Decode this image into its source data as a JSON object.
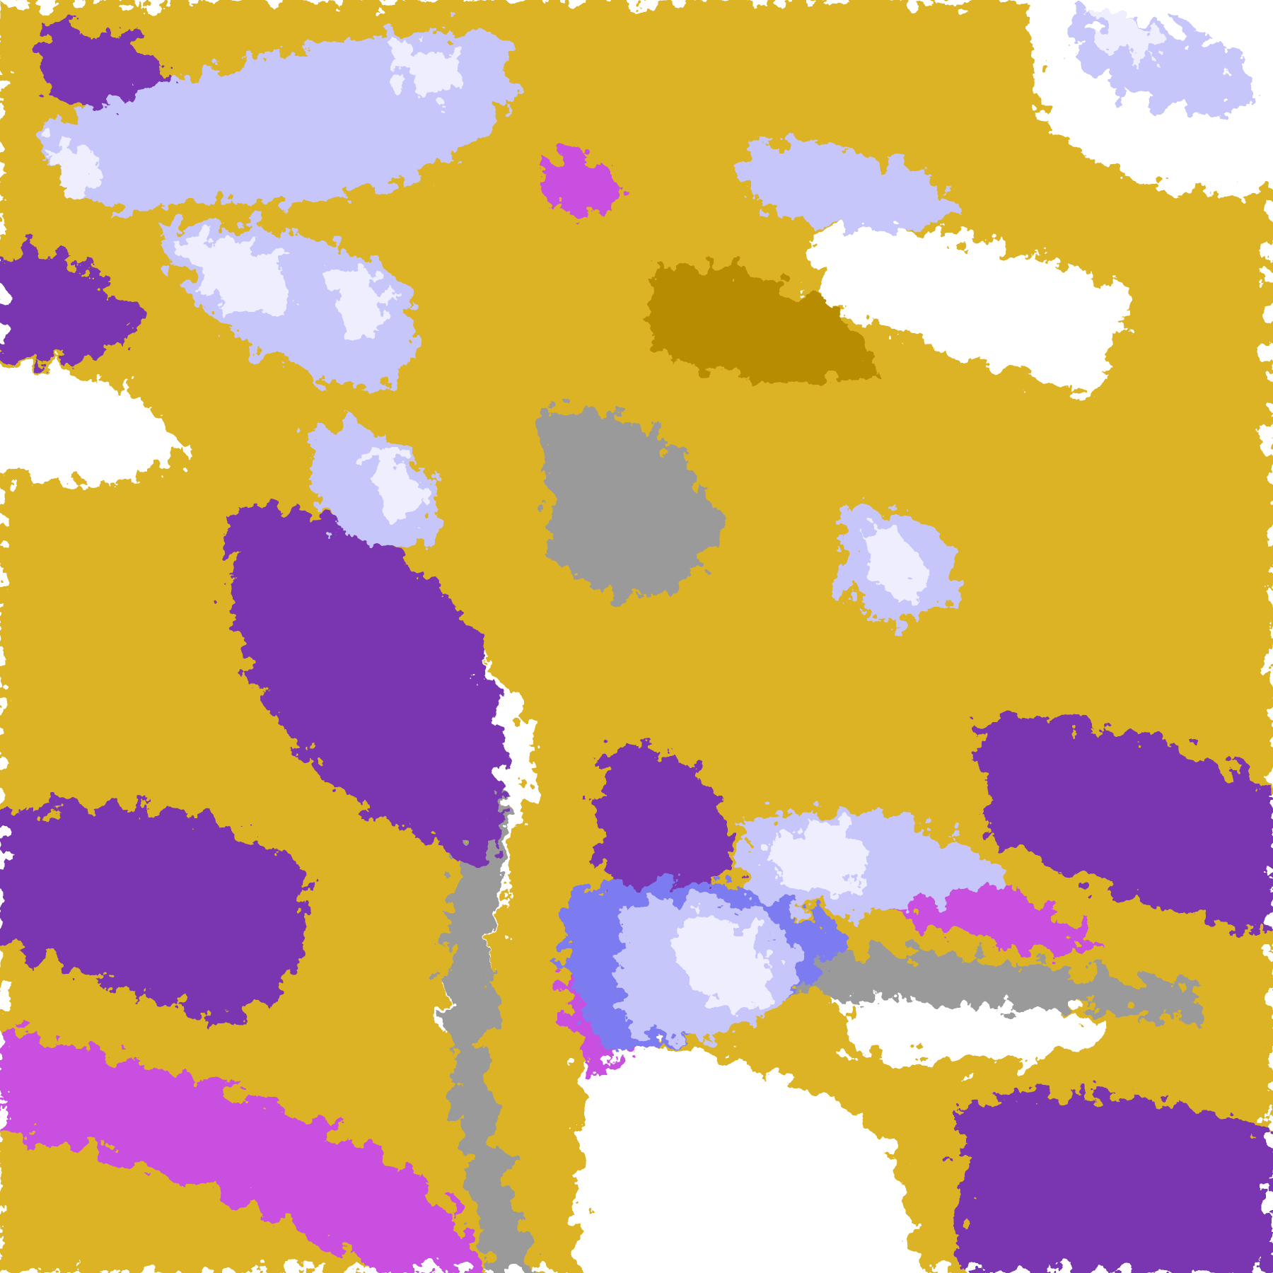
{
  "map": {
    "type": "satellite-cloud-classification",
    "palette": {
      "clear": "#ffffff",
      "gold": "#d7a600",
      "dark_gold": "#b88c00",
      "purple": "#7a36b0",
      "magenta": "#c94fe0",
      "gray": "#9a9a9a",
      "blue": "#7b7bf0",
      "lavender": "#c6c6fb",
      "pale": "#eeeeff"
    }
  }
}
